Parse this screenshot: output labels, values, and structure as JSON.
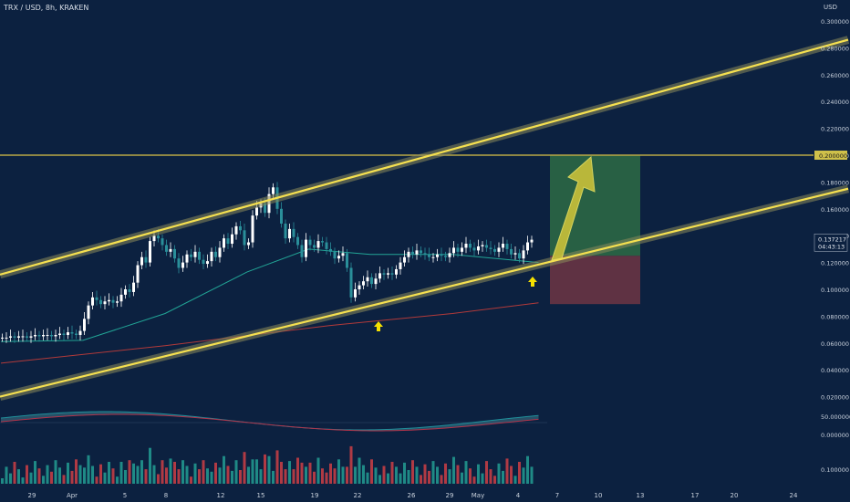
{
  "header": {
    "title": "TRX / USD, 8h, KRAKEN",
    "currency": "USD"
  },
  "colors": {
    "background": "#0c2140",
    "up": "#26a69a",
    "down": "#ef5350",
    "channel": "#f5e050",
    "target_zone": "#2e6b45",
    "stop_zone": "#6e3544",
    "ma_fast": "#22a596",
    "ma_slow": "#b23a3a",
    "arrow": "#f5e000"
  },
  "chart_data": {
    "type": "candlestick",
    "symbol": "TRX/USD",
    "interval": "8h",
    "exchange": "KRAKEN",
    "ylim": [
      0.02,
      0.3
    ],
    "price_ticks": [
      "0.300000",
      "0.280000",
      "0.260000",
      "0.240000",
      "0.220000",
      "0.200000",
      "0.180000",
      "0.160000",
      "0.140000",
      "0.120000",
      "0.100000",
      "0.080000",
      "0.060000",
      "0.040000",
      "0.020000"
    ],
    "x_ticks": [
      "29",
      "Apr",
      "5",
      "8",
      "12",
      "15",
      "19",
      "22",
      "26",
      "29",
      "May",
      "4",
      "7",
      "10",
      "13",
      "17",
      "20",
      "24"
    ],
    "resistance_level": {
      "price": 0.2,
      "label": "0.200000"
    },
    "last_price": {
      "price": 0.137217,
      "label": "0.137217",
      "countdown": "04:43:13"
    },
    "candles_close": [
      0.064,
      0.064,
      0.065,
      0.064,
      0.065,
      0.065,
      0.064,
      0.065,
      0.066,
      0.065,
      0.066,
      0.066,
      0.065,
      0.066,
      0.067,
      0.066,
      0.068,
      0.067,
      0.066,
      0.069,
      0.078,
      0.088,
      0.094,
      0.092,
      0.089,
      0.091,
      0.092,
      0.09,
      0.091,
      0.096,
      0.1,
      0.098,
      0.105,
      0.118,
      0.124,
      0.12,
      0.136,
      0.14,
      0.138,
      0.133,
      0.128,
      0.13,
      0.123,
      0.116,
      0.12,
      0.126,
      0.124,
      0.128,
      0.122,
      0.119,
      0.121,
      0.128,
      0.124,
      0.131,
      0.138,
      0.134,
      0.141,
      0.147,
      0.144,
      0.133,
      0.135,
      0.155,
      0.161,
      0.164,
      0.157,
      0.171,
      0.176,
      0.16,
      0.149,
      0.138,
      0.145,
      0.139,
      0.133,
      0.124,
      0.137,
      0.133,
      0.131,
      0.136,
      0.135,
      0.13,
      0.128,
      0.123,
      0.125,
      0.127,
      0.116,
      0.094,
      0.1,
      0.103,
      0.106,
      0.109,
      0.104,
      0.108,
      0.112,
      0.111,
      0.112,
      0.111,
      0.115,
      0.12,
      0.124,
      0.128,
      0.126,
      0.129,
      0.127,
      0.126,
      0.124,
      0.124,
      0.126,
      0.125,
      0.124,
      0.127,
      0.131,
      0.128,
      0.131,
      0.134,
      0.131,
      0.129,
      0.132,
      0.133,
      0.131,
      0.13,
      0.128,
      0.131,
      0.134,
      0.13,
      0.126,
      0.127,
      0.123,
      0.129,
      0.135,
      0.137
    ],
    "ma_fast_points": [
      [
        0,
        0.061
      ],
      [
        20,
        0.062
      ],
      [
        40,
        0.082
      ],
      [
        60,
        0.113
      ],
      [
        75,
        0.13
      ],
      [
        90,
        0.126
      ],
      [
        110,
        0.126
      ],
      [
        131,
        0.12
      ]
    ],
    "ma_slow_points": [
      [
        0,
        0.045
      ],
      [
        40,
        0.058
      ],
      [
        80,
        0.073
      ],
      [
        110,
        0.082
      ],
      [
        131,
        0.09
      ]
    ],
    "channel_upper": [
      [
        0,
        0.111
      ],
      [
        930,
        0.286
      ]
    ],
    "channel_lower": [
      [
        0,
        0.02
      ],
      [
        930,
        0.175
      ]
    ],
    "position": {
      "entry": 0.125,
      "target": 0.2,
      "stop": 0.089
    },
    "indicator_ticks": [
      "50.000000",
      "0.000000"
    ],
    "volume_tick": "0.100000",
    "annotations": [
      "up-arrow at Apr 23 low",
      "up-arrow at May 4 low",
      "projection arrow to 0.200000"
    ]
  }
}
